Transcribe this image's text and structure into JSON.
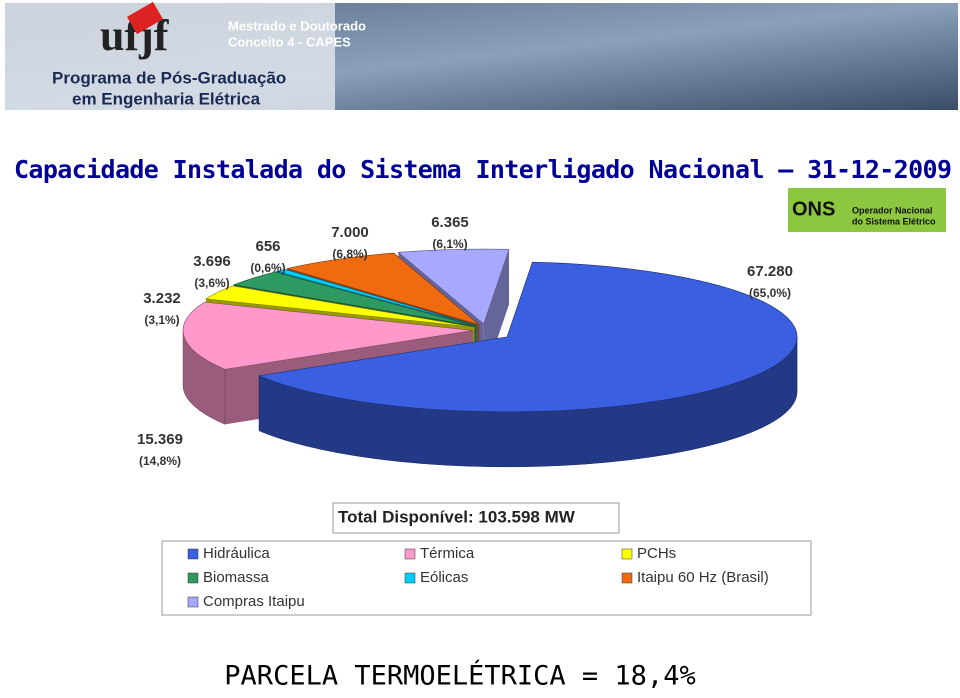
{
  "header": {
    "logo": "ufjf",
    "line1": "Mestrado e Doutorado",
    "line2": "Conceito 4 - CAPES",
    "program1": "Programa de Pós-Graduação",
    "program2": "em Engenharia Elétrica"
  },
  "ons": {
    "logo": "ONS",
    "line1": "Operador Nacional",
    "line2": "do Sistema Elétrico"
  },
  "chart_data": {
    "type": "pie",
    "title": "Capacidade Instalada do Sistema Interligado Nacional – 31-12-2009",
    "categories": [
      "Hidráulica",
      "Térmica",
      "PCHs",
      "Biomassa",
      "Eólicas",
      "Itaipu 60 Hz (Brasil)",
      "Compras Itaipu"
    ],
    "values": [
      67280,
      15369,
      3232,
      3696,
      656,
      7000,
      6365
    ],
    "value_labels": [
      "67.280",
      "15.369",
      "3.232",
      "3.696",
      "656",
      "7.000",
      "6.365"
    ],
    "percent_labels": [
      "(65,0%)",
      "(14,8%)",
      "(3,1%)",
      "(3,6%)",
      "(0,6%)",
      "(6,8%)",
      "(6,1%)"
    ],
    "colors": [
      "#3a5fe0",
      "#ff99cc",
      "#ffff00",
      "#2e9960",
      "#00ccff",
      "#f06a10",
      "#a8a8ff"
    ],
    "total": "Total Disponível: 103.598 MW"
  },
  "footer": "PARCELA TERMOELÉTRICA = 18,4%"
}
